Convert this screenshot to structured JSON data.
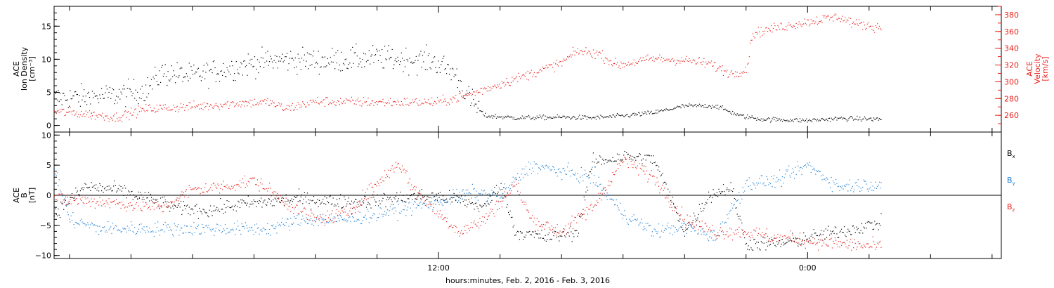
{
  "chart_data": {
    "type": "scatter",
    "x_axis": {
      "label": "hours:minutes, Feb.  2, 2016 - Feb.  3, 2016",
      "ticks": [
        {
          "hour": 12,
          "label": "12:00"
        },
        {
          "hour": 24,
          "label": "0:00"
        }
      ],
      "range_hours": [
        -0.5,
        30.3
      ],
      "minor_tick_step_hours": 2
    },
    "panels": [
      {
        "id": "top",
        "left_axis": {
          "label_lines": [
            "ACE",
            "Ion Density",
            "[cm⁻³]"
          ],
          "ylim": [
            -1,
            18
          ],
          "ticks": [
            0,
            5,
            10,
            15
          ],
          "color": "#000000"
        },
        "right_axis": {
          "label_lines": [
            "ACE",
            "Velocity",
            "[km/s]"
          ],
          "ylim": [
            240,
            390
          ],
          "ticks": [
            260,
            280,
            300,
            320,
            340,
            360,
            380
          ],
          "color": "#e8231d"
        },
        "series": [
          {
            "color": "#000000",
            "axis": "left",
            "anchors": [
              [
                -0.5,
                4.2
              ],
              [
                0.5,
                4.3
              ],
              [
                1.5,
                4.6
              ],
              [
                2.5,
                5.5
              ],
              [
                3.0,
                8.0
              ],
              [
                4.0,
                7.5
              ],
              [
                5.0,
                8.5
              ],
              [
                6.0,
                9.5
              ],
              [
                7.0,
                10.0
              ],
              [
                8.0,
                9.8
              ],
              [
                9.0,
                10.0
              ],
              [
                10.0,
                10.3
              ],
              [
                11.0,
                10.0
              ],
              [
                11.8,
                9.8
              ],
              [
                12.5,
                8.0
              ],
              [
                13.0,
                4.0
              ],
              [
                13.5,
                1.5
              ],
              [
                14.5,
                1.2
              ],
              [
                16.0,
                1.3
              ],
              [
                17.0,
                1.2
              ],
              [
                18.0,
                1.5
              ],
              [
                19.0,
                2.0
              ],
              [
                20.0,
                3.0
              ],
              [
                21.0,
                3.0
              ],
              [
                21.8,
                1.5
              ],
              [
                22.5,
                1.0
              ],
              [
                24.0,
                0.8
              ],
              [
                25.0,
                1.1
              ],
              [
                26.4,
                1.0
              ]
            ],
            "noise": 1.6,
            "spread_until_hour": 13.3,
            "noise_after": 0.3,
            "step_hours": 0.03
          },
          {
            "color": "#e8231d",
            "axis": "right",
            "anchors": [
              [
                -0.5,
                265
              ],
              [
                0.5,
                262
              ],
              [
                1.5,
                258
              ],
              [
                2.5,
                268
              ],
              [
                3.5,
                270
              ],
              [
                4.5,
                272
              ],
              [
                5.5,
                275
              ],
              [
                6.5,
                276
              ],
              [
                7.0,
                268
              ],
              [
                8.0,
                277
              ],
              [
                10.0,
                276
              ],
              [
                12.0,
                276
              ],
              [
                13.0,
                285
              ],
              [
                14.0,
                298
              ],
              [
                15.0,
                310
              ],
              [
                16.0,
                323
              ],
              [
                16.5,
                337
              ],
              [
                17.2,
                334
              ],
              [
                17.8,
                320
              ],
              [
                19.0,
                328
              ],
              [
                20.0,
                326
              ],
              [
                20.8,
                322
              ],
              [
                21.5,
                310
              ],
              [
                22.0,
                315
              ],
              [
                22.2,
                358
              ],
              [
                23.0,
                365
              ],
              [
                24.0,
                372
              ],
              [
                25.0,
                378
              ],
              [
                25.5,
                370
              ],
              [
                26.4,
                365
              ]
            ],
            "noise": 5,
            "step_hours": 0.03
          }
        ]
      },
      {
        "id": "bottom",
        "left_axis": {
          "label_lines": [
            "ACE",
            "B",
            "[nT]"
          ],
          "ylim": [
            -10.5,
            10.5
          ],
          "ticks": [
            -10,
            -5,
            0,
            5,
            10
          ],
          "color": "#000000"
        },
        "zero_line": true,
        "legend": [
          {
            "label": "B",
            "subscript": "x",
            "color": "#000000"
          },
          {
            "label": "B",
            "subscript": "y",
            "color": "#1f7fd4"
          },
          {
            "label": "B",
            "subscript": "z",
            "color": "#e8231d"
          }
        ],
        "series": [
          {
            "name": "Bx",
            "color": "#000000",
            "anchors": [
              [
                -0.5,
                -3
              ],
              [
                0.5,
                1.5
              ],
              [
                1.5,
                1
              ],
              [
                2.5,
                -0.5
              ],
              [
                3.5,
                -2
              ],
              [
                4.5,
                -2.5
              ],
              [
                5.5,
                -1.5
              ],
              [
                6.5,
                -1
              ],
              [
                7.5,
                -0.5
              ],
              [
                8.5,
                -1
              ],
              [
                9.5,
                -1
              ],
              [
                10.5,
                -0.5
              ],
              [
                11.5,
                0
              ],
              [
                12.5,
                -0.5
              ],
              [
                13.5,
                -2
              ],
              [
                14.0,
                2
              ],
              [
                14.5,
                -6
              ],
              [
                15.5,
                -7
              ],
              [
                16.5,
                -6
              ],
              [
                17.0,
                5.5
              ],
              [
                18.0,
                6.5
              ],
              [
                19.0,
                6
              ],
              [
                20.0,
                -6
              ],
              [
                20.8,
                0
              ],
              [
                21.5,
                1.5
              ],
              [
                22.0,
                -8
              ],
              [
                23.0,
                -8
              ],
              [
                24.0,
                -7
              ],
              [
                25.0,
                -6
              ],
              [
                26.4,
                -4.5
              ]
            ],
            "noise": 1.0,
            "step_hours": 0.03
          },
          {
            "name": "By",
            "color": "#1f7fd4",
            "anchors": [
              [
                -0.5,
                4.5
              ],
              [
                0,
                -4
              ],
              [
                1,
                -5.5
              ],
              [
                3,
                -5.5
              ],
              [
                5,
                -5.5
              ],
              [
                6.5,
                -5.5
              ],
              [
                7.5,
                -4
              ],
              [
                9,
                -4
              ],
              [
                10,
                -3
              ],
              [
                11,
                -2
              ],
              [
                12,
                -1
              ],
              [
                13,
                0.5
              ],
              [
                14,
                0
              ],
              [
                15,
                5
              ],
              [
                16,
                4
              ],
              [
                17,
                3
              ],
              [
                18,
                -3
              ],
              [
                19,
                -6
              ],
              [
                20,
                -5
              ],
              [
                21,
                -7
              ],
              [
                22,
                2
              ],
              [
                23,
                2.5
              ],
              [
                24,
                5
              ],
              [
                25,
                1.5
              ],
              [
                26.4,
                2
              ]
            ],
            "noise": 1.0,
            "step_hours": 0.03
          },
          {
            "name": "Bz",
            "color": "#e8231d",
            "anchors": [
              [
                -0.5,
                -0.5
              ],
              [
                1,
                -1
              ],
              [
                3,
                -2
              ],
              [
                4,
                1
              ],
              [
                5,
                1.5
              ],
              [
                6,
                2.5
              ],
              [
                7,
                -1
              ],
              [
                8,
                -4
              ],
              [
                9,
                -3
              ],
              [
                10,
                2
              ],
              [
                10.7,
                5.5
              ],
              [
                11.2,
                1
              ],
              [
                12,
                -3
              ],
              [
                12.7,
                -6
              ],
              [
                13.5,
                -4
              ],
              [
                14.5,
                2
              ],
              [
                15,
                -4
              ],
              [
                16,
                -6
              ],
              [
                17,
                -2
              ],
              [
                18,
                6
              ],
              [
                19,
                3
              ],
              [
                20,
                -4
              ],
              [
                21,
                -6
              ],
              [
                22,
                -6
              ],
              [
                23,
                -7
              ],
              [
                24,
                -7.5
              ],
              [
                25,
                -8
              ],
              [
                26.4,
                -8.5
              ]
            ],
            "noise": 1.0,
            "step_hours": 0.03
          }
        ]
      }
    ]
  }
}
